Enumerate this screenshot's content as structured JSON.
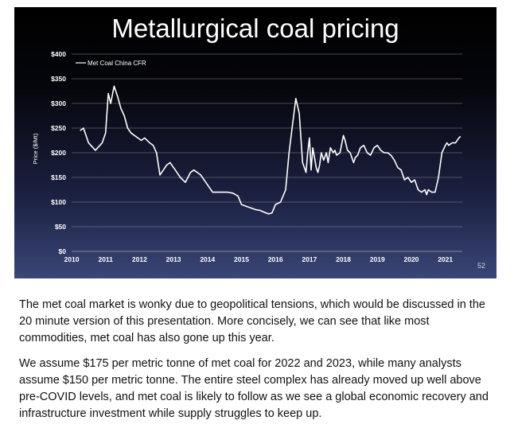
{
  "slide": {
    "title": "Metallurgical coal pricing",
    "page_number": "52"
  },
  "chart_data": {
    "type": "line",
    "title": "Metallurgical coal pricing",
    "xlabel": "",
    "ylabel": "Price ($/Mt)",
    "xlim": [
      2010,
      2021.5
    ],
    "ylim": [
      0,
      400
    ],
    "x_ticks": [
      2010,
      2011,
      2012,
      2013,
      2014,
      2015,
      2016,
      2017,
      2018,
      2019,
      2020,
      2021
    ],
    "y_ticks": [
      0,
      50,
      100,
      150,
      200,
      250,
      300,
      350,
      400
    ],
    "y_tick_labels": [
      "$0",
      "$50",
      "$100",
      "$150",
      "$200",
      "$250",
      "$300",
      "$350",
      "$400"
    ],
    "grid": "horizontal",
    "legend_position": "top-left",
    "colors": {
      "line": "#ffffff",
      "text": "#ffffff",
      "grid": "#8a8a8a"
    },
    "series": [
      {
        "name": "Met Coal China CFR",
        "x": [
          2010.25,
          2010.35,
          2010.5,
          2010.7,
          2010.9,
          2011.0,
          2011.08,
          2011.15,
          2011.25,
          2011.35,
          2011.45,
          2011.55,
          2011.65,
          2011.75,
          2011.85,
          2011.95,
          2012.05,
          2012.15,
          2012.3,
          2012.4,
          2012.5,
          2012.6,
          2012.7,
          2012.8,
          2012.9,
          2013.0,
          2013.1,
          2013.2,
          2013.35,
          2013.5,
          2013.6,
          2013.8,
          2013.9,
          2014.0,
          2014.15,
          2014.3,
          2014.45,
          2014.6,
          2014.75,
          2014.9,
          2015.0,
          2015.2,
          2015.4,
          2015.55,
          2015.65,
          2015.8,
          2015.9,
          2016.0,
          2016.15,
          2016.3,
          2016.4,
          2016.5,
          2016.6,
          2016.7,
          2016.75,
          2016.8,
          2016.85,
          2016.9,
          2016.95,
          2017.0,
          2017.05,
          2017.1,
          2017.15,
          2017.2,
          2017.25,
          2017.3,
          2017.35,
          2017.42,
          2017.5,
          2017.55,
          2017.62,
          2017.7,
          2017.75,
          2017.8,
          2017.9,
          2018.0,
          2018.05,
          2018.12,
          2018.2,
          2018.3,
          2018.35,
          2018.42,
          2018.5,
          2018.6,
          2018.7,
          2018.8,
          2018.9,
          2019.0,
          2019.1,
          2019.2,
          2019.3,
          2019.4,
          2019.5,
          2019.6,
          2019.7,
          2019.8,
          2019.9,
          2020.0,
          2020.1,
          2020.2,
          2020.3,
          2020.4,
          2020.45,
          2020.5,
          2020.6,
          2020.7,
          2020.8,
          2020.9,
          2021.0,
          2021.05,
          2021.1,
          2021.2,
          2021.3,
          2021.4,
          2021.45
        ],
        "values": [
          245,
          250,
          220,
          205,
          220,
          240,
          320,
          300,
          335,
          315,
          290,
          275,
          250,
          240,
          235,
          230,
          225,
          230,
          220,
          215,
          200,
          155,
          165,
          175,
          180,
          170,
          160,
          150,
          140,
          160,
          165,
          155,
          145,
          135,
          120,
          120,
          120,
          120,
          118,
          112,
          95,
          90,
          85,
          83,
          80,
          76,
          78,
          95,
          100,
          125,
          200,
          255,
          310,
          280,
          230,
          180,
          170,
          160,
          200,
          230,
          165,
          210,
          190,
          170,
          160,
          175,
          200,
          185,
          200,
          180,
          210,
          200,
          205,
          195,
          200,
          235,
          225,
          205,
          200,
          180,
          190,
          195,
          210,
          215,
          200,
          195,
          210,
          215,
          205,
          200,
          200,
          195,
          185,
          170,
          165,
          145,
          150,
          140,
          145,
          125,
          120,
          125,
          115,
          125,
          120,
          120,
          150,
          200,
          215,
          220,
          215,
          220,
          220,
          230,
          233
        ]
      }
    ]
  },
  "text": {
    "paragraph_1": "The met coal market is wonky due to geopolitical tensions, which would be discussed in the 20 minute version of this presentation.  More concisely, we can see that like most commodities, met coal has also gone up this year.",
    "paragraph_2": "We assume $175 per metric tonne of met coal for 2022 and 2023, while many analysts assume $150 per metric tonne. The entire steel complex has already moved up well above pre-COVID levels, and met coal is likely to follow as we see a global economic recovery and infrastructure investment while supply struggles to keep up."
  }
}
